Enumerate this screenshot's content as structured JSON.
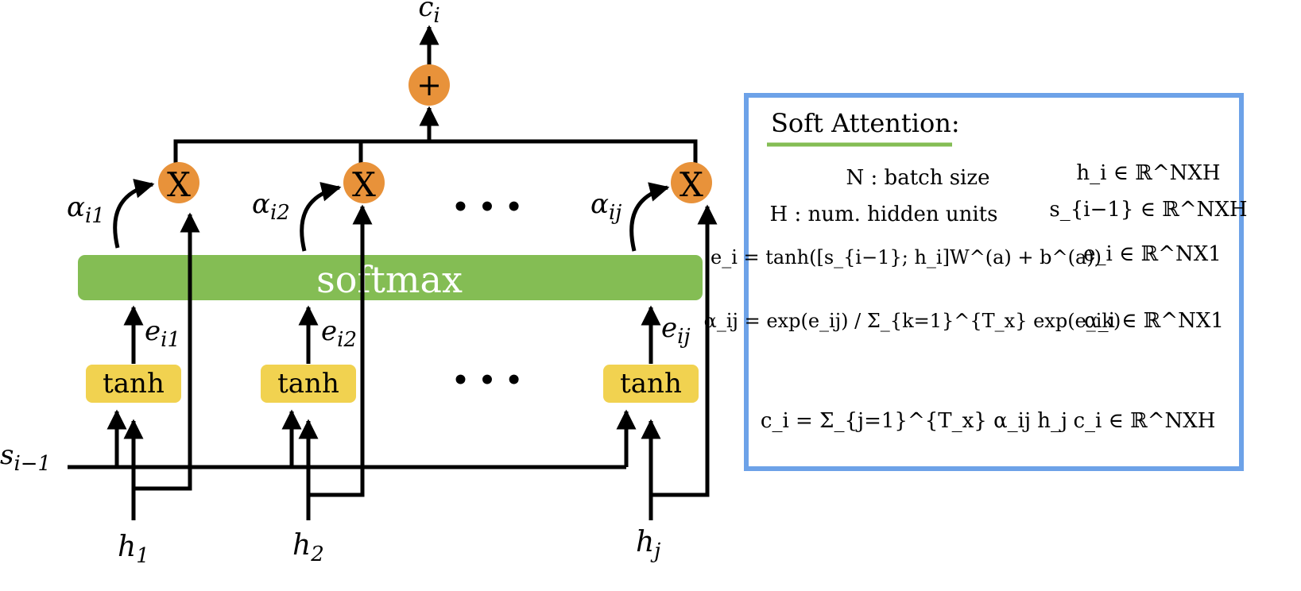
{
  "diagram": {
    "output": {
      "symbol": "c",
      "subscript": "i"
    },
    "sum_node": "+",
    "multiply_label": "X",
    "alphas": [
      {
        "symbol": "α",
        "subscript": "i1"
      },
      {
        "symbol": "α",
        "subscript": "i2"
      },
      {
        "symbol": "α",
        "subscript": "ij"
      }
    ],
    "ellipsis": "• • •",
    "softmax_label": "softmax",
    "energies": [
      {
        "symbol": "e",
        "subscript": "i1"
      },
      {
        "symbol": "e",
        "subscript": "i2"
      },
      {
        "symbol": "e",
        "subscript": "ij"
      }
    ],
    "tanh_label": "tanh",
    "state": {
      "symbol": "s",
      "subscript": "i−1"
    },
    "hiddens": [
      {
        "symbol": "h",
        "subscript": "1"
      },
      {
        "symbol": "h",
        "subscript": "2"
      },
      {
        "symbol": "h",
        "subscript": "j"
      }
    ],
    "colors": {
      "orange": "#e8923a",
      "green": "#84bd54",
      "yellow": "#f1d250",
      "blue_border": "#6da2e8",
      "line": "#000000"
    }
  },
  "legend": {
    "title": "Soft Attention:",
    "rows": [
      {
        "left": "N : batch size",
        "right": "h_i ∈ ℝ^NXH"
      },
      {
        "left": "H : num. hidden units",
        "right": "s_{i−1} ∈ ℝ^NXH"
      },
      {
        "left": "e_i = tanh([s_{i−1}; h_i]W^(a) + b^(a))",
        "right": "e_i ∈ ℝ^NX1"
      },
      {
        "left": "α_ij = exp(e_ij) / Σ_{k=1}^{T_x} exp(e_ik)",
        "right": "α_i ∈ ℝ^NX1"
      },
      {
        "left": "c_i = Σ_{j=1}^{T_x} α_ij h_j",
        "right": "c_i ∈ ℝ^NXH"
      }
    ]
  }
}
